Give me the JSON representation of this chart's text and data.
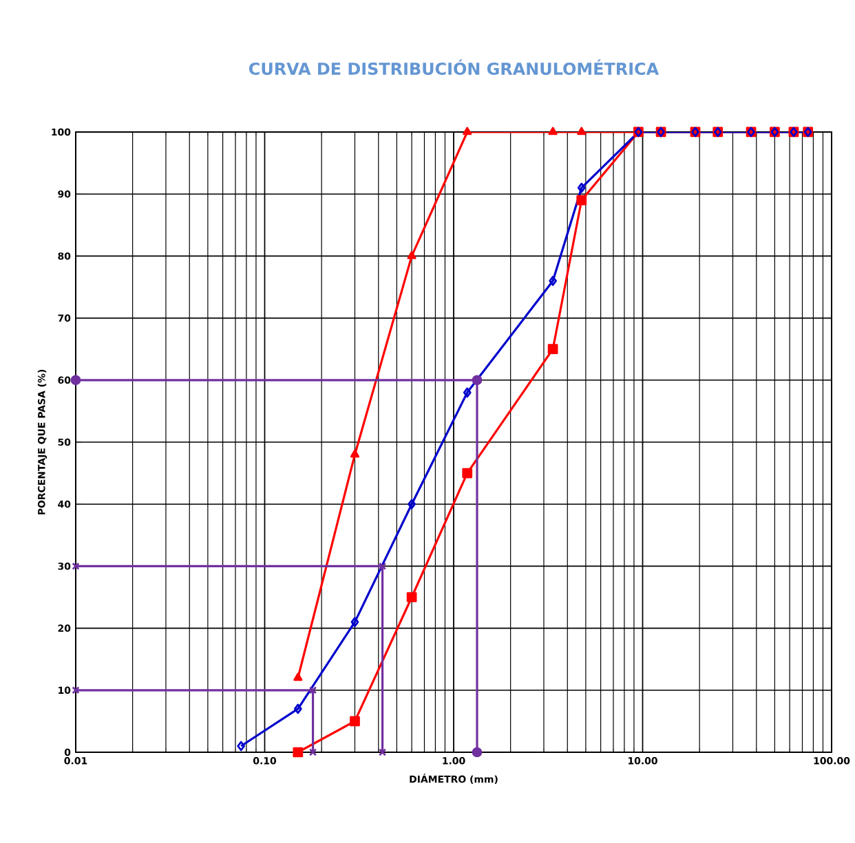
{
  "chart_data": {
    "type": "line",
    "title": "CURVA DE DISTRIBUCIÓN GRANULOMÉTRICA",
    "xlabel": "DIÁMETRO (mm)",
    "ylabel": "PORCENTAJE QUE PASA (%)",
    "log": "x",
    "grid": true,
    "line_style": "solid",
    "xlim": [
      0.01,
      100
    ],
    "ylim": [
      0,
      100
    ],
    "xticks": [
      0.01,
      {
        "value": 0.1,
        "label": "0.10"
      },
      {
        "value": 1,
        "label": "1.00"
      },
      {
        "value": 10,
        "label": "10.00"
      },
      {
        "value": 100,
        "label": "100.00"
      }
    ],
    "yticks": [
      0,
      10,
      20,
      30,
      40,
      50,
      60,
      70,
      80,
      90,
      100
    ],
    "series": [
      {
        "color": "#ff0000",
        "marker": "triangle",
        "x": [
          0.15,
          0.3,
          0.6,
          1.18,
          3.35,
          4.75,
          9.5
        ],
        "values": [
          12,
          48,
          80,
          100,
          100,
          100,
          100
        ]
      },
      {
        "color": "#ff0000",
        "marker": "square",
        "x": [
          0.15,
          0.3,
          0.6,
          1.18,
          3.35,
          4.75,
          9.5,
          12.5,
          19,
          25,
          37.5,
          50,
          63,
          75
        ],
        "values": [
          0,
          5,
          25,
          45,
          65,
          89,
          100,
          100,
          100,
          100,
          100,
          100,
          100,
          100
        ]
      },
      {
        "color": "#0000cc",
        "marker": "diamond",
        "x": [
          0.075,
          0.15,
          0.3,
          0.6,
          1.18,
          3.35,
          4.75,
          9.5,
          12.5,
          19,
          25,
          37.5,
          50,
          63,
          75
        ],
        "values": [
          1,
          7,
          21,
          40,
          58,
          76,
          91,
          100,
          100,
          100,
          100,
          100,
          100,
          100,
          100
        ]
      },
      {
        "color": "#7030a0",
        "marker": "cross",
        "x": [
          0.01,
          0.18,
          0.18
        ],
        "values": [
          10,
          10,
          0
        ]
      },
      {
        "color": "#7030a0",
        "marker": "cross",
        "x": [
          0.01,
          0.42,
          0.42
        ],
        "values": [
          30,
          30,
          0
        ]
      },
      {
        "color": "#7030a0",
        "marker": "circle",
        "x": [
          0.01,
          1.33,
          1.33
        ],
        "values": [
          60,
          60,
          0
        ]
      }
    ]
  }
}
